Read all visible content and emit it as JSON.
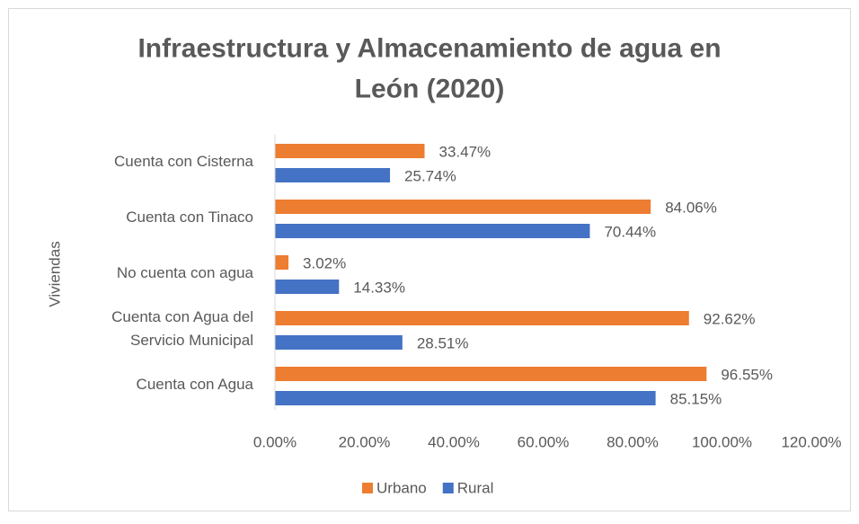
{
  "chart_data": {
    "type": "bar",
    "orientation": "horizontal",
    "title": "Infraestructura y Almacenamiento de agua en\nLeón (2020)",
    "y_label": "Viviendas",
    "categories": [
      "Cuenta con Cisterna",
      "Cuenta con Tinaco",
      "No cuenta con agua",
      "Cuenta con Agua del\nServicio Municipal",
      "Cuenta con Agua"
    ],
    "series": [
      {
        "name": "Urbano",
        "color": "#ed7d31",
        "values": [
          33.47,
          84.06,
          3.02,
          92.62,
          96.55
        ],
        "value_labels": [
          "33.47%",
          "84.06%",
          "3.02%",
          "92.62%",
          "96.55%"
        ]
      },
      {
        "name": "Rural",
        "color": "#4472c4",
        "values": [
          25.74,
          70.44,
          14.33,
          28.51,
          85.15
        ],
        "value_labels": [
          "25.74%",
          "70.44%",
          "14.33%",
          "28.51%",
          "85.15%"
        ]
      }
    ],
    "xlim": [
      0,
      120
    ],
    "xticks": [
      {
        "value": 0,
        "label": "0.00%"
      },
      {
        "value": 20,
        "label": "20.00%"
      },
      {
        "value": 40,
        "label": "40.00%"
      },
      {
        "value": 60,
        "label": "60.00%"
      },
      {
        "value": 80,
        "label": "80.00%"
      },
      {
        "value": 100,
        "label": "100.00%"
      },
      {
        "value": 120,
        "label": "120.00%"
      }
    ],
    "grid": false,
    "legend": "bottom"
  }
}
